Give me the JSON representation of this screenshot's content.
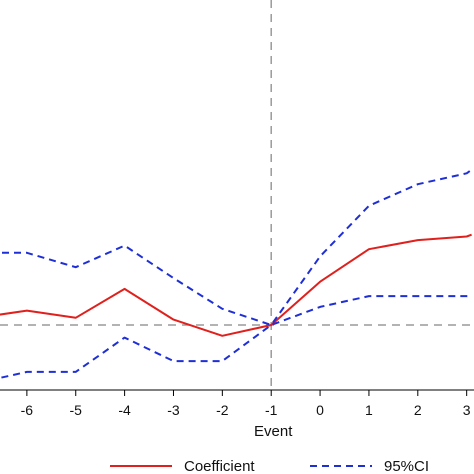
{
  "chart_data": {
    "type": "line",
    "xlabel": "Event",
    "ylabel": "",
    "title": "",
    "x": [
      -7,
      -6,
      -5,
      -4,
      -3,
      -2,
      -1,
      0,
      1,
      2,
      3,
      3.1
    ],
    "x_ticks": [
      -6,
      -5,
      -4,
      -3,
      -2,
      -1,
      0,
      1,
      2,
      3
    ],
    "x_tick_labels": [
      "-6",
      "-5",
      "-4",
      "-3",
      "-2",
      "-1",
      "0",
      "1",
      "2",
      "3"
    ],
    "xlim": [
      -6.55,
      3.15
    ],
    "ylim": [
      -0.18,
      0.9
    ],
    "reference_lines": {
      "vertical_x": -1,
      "horizontal_y": 0
    },
    "series": [
      {
        "name": "Coefficient",
        "color": "#e0201c",
        "style": "solid",
        "values": [
          0.02,
          0.04,
          0.02,
          0.1,
          0.015,
          -0.03,
          0.0,
          0.12,
          0.21,
          0.235,
          0.245,
          0.25
        ]
      },
      {
        "name": "95%CI",
        "color": "#1f2fd6",
        "style": "dashed",
        "values": [
          0.2,
          0.2,
          0.16,
          0.22,
          0.13,
          0.045,
          0.0,
          0.19,
          0.33,
          0.39,
          0.42,
          0.43
        ]
      },
      {
        "name": "95%CI",
        "color": "#1f2fd6",
        "style": "dashed",
        "values": [
          -0.16,
          -0.13,
          -0.13,
          -0.035,
          -0.1,
          -0.1,
          0.0,
          0.05,
          0.08,
          0.08,
          0.08,
          0.08
        ]
      }
    ],
    "legend": {
      "placement": "bottom",
      "entries": [
        {
          "label": "Coefficient",
          "color": "#e0201c",
          "style": "solid"
        },
        {
          "label": "95%CI",
          "color": "#1f2fd6",
          "style": "dashed"
        }
      ]
    },
    "grid": false
  }
}
